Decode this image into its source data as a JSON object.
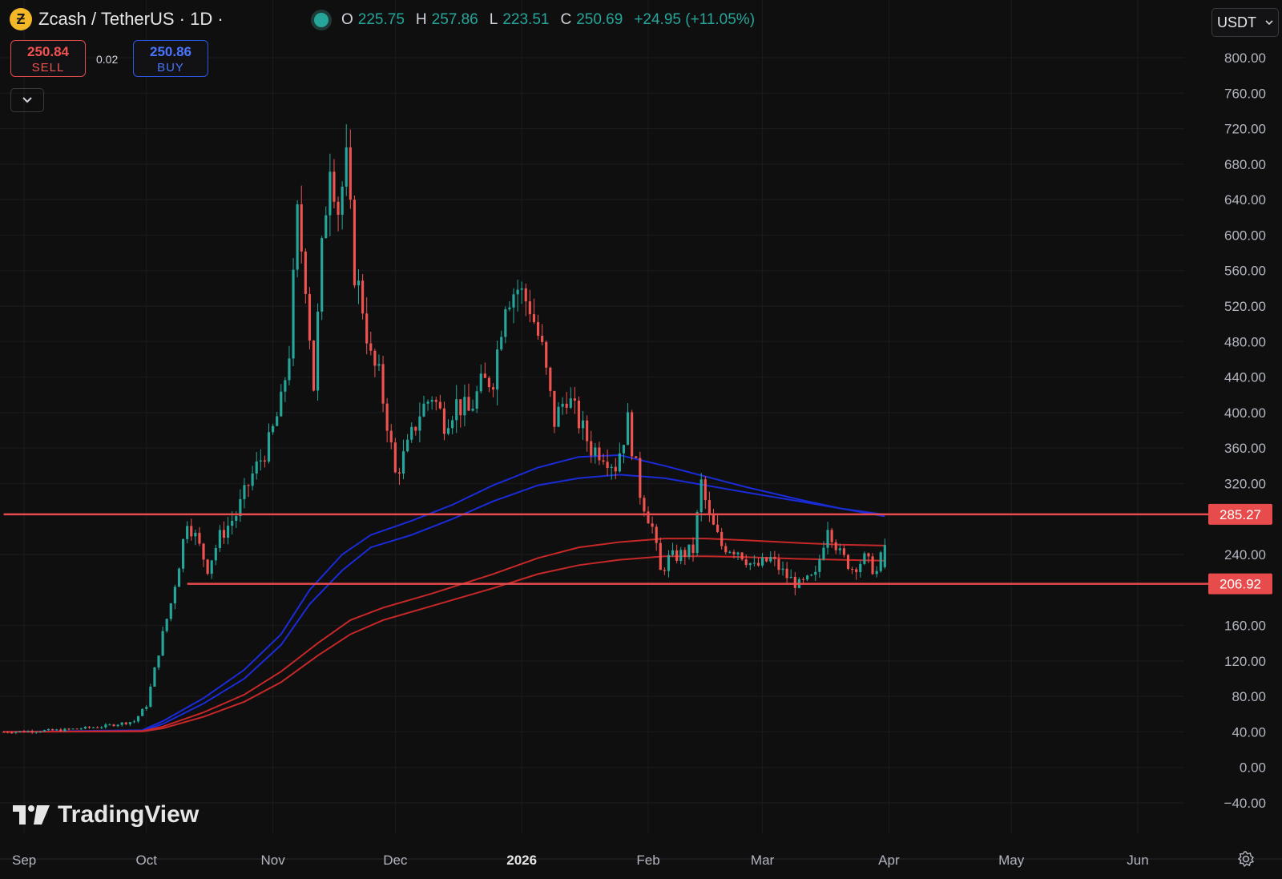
{
  "header": {
    "coin_glyph": "Ƶ",
    "symbol": "Zcash / TetherUS · 1D ·",
    "ohlc": {
      "o_label": "O",
      "o": "225.75",
      "h_label": "H",
      "h": "257.86",
      "l_label": "L",
      "l": "223.51",
      "c_label": "C",
      "c": "250.69",
      "change": "+24.95 (+11.05%)"
    }
  },
  "trade": {
    "sell_price": "250.84",
    "sell_label": "SELL",
    "spread": "0.02",
    "buy_price": "250.86",
    "buy_label": "BUY"
  },
  "currency": {
    "label": "USDT"
  },
  "brand": {
    "name": "TradingView"
  },
  "colors": {
    "up": "#26a69a",
    "down": "#ef5350",
    "ma_blue": "#1a2bd8",
    "ma_red": "#c62828",
    "hline": "#e84b4b",
    "grid": "#1c1c1f",
    "axis_text": "#b2b5be"
  },
  "chart_data": {
    "type": "candlestick",
    "y_ticks": [
      800,
      760,
      720,
      680,
      640,
      600,
      560,
      520,
      480,
      440,
      400,
      360,
      320,
      240,
      160,
      120,
      80,
      40,
      0,
      -40
    ],
    "y_tick_labels": [
      "800.00",
      "760.00",
      "720.00",
      "680.00",
      "640.00",
      "600.00",
      "560.00",
      "520.00",
      "480.00",
      "440.00",
      "400.00",
      "360.00",
      "320.00",
      "240.00",
      "160.00",
      "120.00",
      "80.00",
      "40.00",
      "0.00",
      "−40.00"
    ],
    "ylim": [
      -60,
      830
    ],
    "x_labels": [
      {
        "date": "2025-09-01",
        "label": "Sep"
      },
      {
        "date": "2025-10-01",
        "label": "Oct"
      },
      {
        "date": "2025-11-01",
        "label": "Nov"
      },
      {
        "date": "2025-12-01",
        "label": "Dec"
      },
      {
        "date": "2026-01-01",
        "label": "2026"
      },
      {
        "date": "2026-02-01",
        "label": "Feb"
      },
      {
        "date": "2026-03-01",
        "label": "Mar"
      },
      {
        "date": "2026-04-01",
        "label": "Apr"
      },
      {
        "date": "2026-05-01",
        "label": "May"
      },
      {
        "date": "2026-06-01",
        "label": "Jun"
      }
    ],
    "xlim": [
      "2025-08-27",
      "2026-06-12"
    ],
    "horizontal_lines": [
      {
        "value": 285.27,
        "label": "285.27",
        "from": "2025-08-27"
      },
      {
        "value": 206.92,
        "label": "206.92",
        "from": "2025-10-11"
      }
    ],
    "moving_averages": [
      {
        "color": "blue",
        "points": [
          [
            "2025-08-27",
            40
          ],
          [
            "2025-09-30",
            42
          ],
          [
            "2025-10-05",
            52
          ],
          [
            "2025-10-15",
            78
          ],
          [
            "2025-10-25",
            110
          ],
          [
            "2025-11-03",
            150
          ],
          [
            "2025-11-10",
            200
          ],
          [
            "2025-11-18",
            240
          ],
          [
            "2025-11-25",
            262
          ],
          [
            "2025-12-05",
            278
          ],
          [
            "2025-12-15",
            296
          ],
          [
            "2025-12-25",
            318
          ],
          [
            "2026-01-05",
            338
          ],
          [
            "2026-01-15",
            350
          ],
          [
            "2026-01-25",
            352
          ],
          [
            "2026-02-05",
            340
          ],
          [
            "2026-02-15",
            328
          ],
          [
            "2026-02-25",
            316
          ],
          [
            "2026-03-10",
            302
          ],
          [
            "2026-03-20",
            292
          ],
          [
            "2026-03-31",
            283
          ]
        ]
      },
      {
        "color": "blue",
        "points": [
          [
            "2025-08-27",
            40
          ],
          [
            "2025-09-30",
            41
          ],
          [
            "2025-10-05",
            49
          ],
          [
            "2025-10-15",
            72
          ],
          [
            "2025-10-25",
            100
          ],
          [
            "2025-11-03",
            138
          ],
          [
            "2025-11-10",
            184
          ],
          [
            "2025-11-18",
            222
          ],
          [
            "2025-11-25",
            248
          ],
          [
            "2025-12-05",
            262
          ],
          [
            "2025-12-15",
            280
          ],
          [
            "2025-12-25",
            300
          ],
          [
            "2026-01-05",
            318
          ],
          [
            "2026-01-15",
            326
          ],
          [
            "2026-01-25",
            330
          ],
          [
            "2026-02-05",
            326
          ],
          [
            "2026-02-15",
            318
          ],
          [
            "2026-02-25",
            310
          ],
          [
            "2026-03-10",
            300
          ],
          [
            "2026-03-20",
            292
          ],
          [
            "2026-03-31",
            285
          ]
        ]
      },
      {
        "color": "red",
        "points": [
          [
            "2025-08-27",
            40
          ],
          [
            "2025-09-30",
            41
          ],
          [
            "2025-10-05",
            46
          ],
          [
            "2025-10-15",
            62
          ],
          [
            "2025-10-25",
            82
          ],
          [
            "2025-11-03",
            108
          ],
          [
            "2025-11-12",
            140
          ],
          [
            "2025-11-20",
            166
          ],
          [
            "2025-11-28",
            180
          ],
          [
            "2025-12-10",
            196
          ],
          [
            "2025-12-25",
            218
          ],
          [
            "2026-01-05",
            236
          ],
          [
            "2026-01-15",
            248
          ],
          [
            "2026-01-25",
            254
          ],
          [
            "2026-02-05",
            258
          ],
          [
            "2026-02-15",
            258
          ],
          [
            "2026-02-25",
            256
          ],
          [
            "2026-03-10",
            253
          ],
          [
            "2026-03-20",
            251
          ],
          [
            "2026-03-31",
            250
          ]
        ]
      },
      {
        "color": "red",
        "points": [
          [
            "2025-08-27",
            40
          ],
          [
            "2025-09-30",
            40.5
          ],
          [
            "2025-10-05",
            44
          ],
          [
            "2025-10-15",
            57
          ],
          [
            "2025-10-25",
            74
          ],
          [
            "2025-11-03",
            96
          ],
          [
            "2025-11-12",
            126
          ],
          [
            "2025-11-20",
            150
          ],
          [
            "2025-11-28",
            166
          ],
          [
            "2025-12-10",
            182
          ],
          [
            "2025-12-25",
            202
          ],
          [
            "2026-01-05",
            218
          ],
          [
            "2026-01-15",
            228
          ],
          [
            "2026-01-25",
            234
          ],
          [
            "2026-02-05",
            238
          ],
          [
            "2026-02-15",
            238
          ],
          [
            "2026-02-25",
            237
          ],
          [
            "2026-03-10",
            235
          ],
          [
            "2026-03-20",
            234
          ],
          [
            "2026-03-31",
            233
          ]
        ]
      }
    ],
    "close_path": [
      [
        "2025-08-27",
        40
      ],
      [
        "2025-09-10",
        42
      ],
      [
        "2025-09-20",
        46
      ],
      [
        "2025-09-28",
        52
      ],
      [
        "2025-10-01",
        70
      ],
      [
        "2025-10-03",
        110
      ],
      [
        "2025-10-05",
        150
      ],
      [
        "2025-10-07",
        185
      ],
      [
        "2025-10-09",
        230
      ],
      [
        "2025-10-11",
        280
      ],
      [
        "2025-10-13",
        260
      ],
      [
        "2025-10-16",
        225
      ],
      [
        "2025-10-19",
        260
      ],
      [
        "2025-10-23",
        285
      ],
      [
        "2025-10-27",
        330
      ],
      [
        "2025-10-31",
        365
      ],
      [
        "2025-11-03",
        410
      ],
      [
        "2025-11-05",
        470
      ],
      [
        "2025-11-07",
        620
      ],
      [
        "2025-11-09",
        550
      ],
      [
        "2025-11-11",
        430
      ],
      [
        "2025-11-13",
        580
      ],
      [
        "2025-11-15",
        690
      ],
      [
        "2025-11-17",
        630
      ],
      [
        "2025-11-19",
        680
      ],
      [
        "2025-11-21",
        560
      ],
      [
        "2025-11-23",
        520
      ],
      [
        "2025-11-25",
        460
      ],
      [
        "2025-11-27",
        440
      ],
      [
        "2025-11-29",
        390
      ],
      [
        "2025-12-01",
        330
      ],
      [
        "2025-12-04",
        360
      ],
      [
        "2025-12-07",
        400
      ],
      [
        "2025-12-10",
        420
      ],
      [
        "2025-12-13",
        390
      ],
      [
        "2025-12-16",
        410
      ],
      [
        "2025-12-19",
        400
      ],
      [
        "2025-12-22",
        430
      ],
      [
        "2025-12-25",
        440
      ],
      [
        "2025-12-28",
        530
      ],
      [
        "2025-12-31",
        540
      ],
      [
        "2026-01-03",
        520
      ],
      [
        "2026-01-06",
        470
      ],
      [
        "2026-01-09",
        390
      ],
      [
        "2026-01-12",
        420
      ],
      [
        "2026-01-15",
        390
      ],
      [
        "2026-01-18",
        360
      ],
      [
        "2026-01-21",
        355
      ],
      [
        "2026-01-24",
        340
      ],
      [
        "2026-01-27",
        390
      ],
      [
        "2026-01-30",
        310
      ],
      [
        "2026-02-02",
        270
      ],
      [
        "2026-02-04",
        220
      ],
      [
        "2026-02-06",
        235
      ],
      [
        "2026-02-09",
        240
      ],
      [
        "2026-02-12",
        245
      ],
      [
        "2026-02-14",
        320
      ],
      [
        "2026-02-16",
        280
      ],
      [
        "2026-02-19",
        250
      ],
      [
        "2026-02-23",
        245
      ],
      [
        "2026-02-27",
        225
      ],
      [
        "2026-03-03",
        235
      ],
      [
        "2026-03-07",
        215
      ],
      [
        "2026-03-10",
        205
      ],
      [
        "2026-03-14",
        215
      ],
      [
        "2026-03-17",
        275
      ],
      [
        "2026-03-20",
        240
      ],
      [
        "2026-03-23",
        225
      ],
      [
        "2026-03-26",
        235
      ],
      [
        "2026-03-29",
        220
      ],
      [
        "2026-03-31",
        250.69
      ]
    ],
    "last": {
      "open": 225.75,
      "high": 257.86,
      "low": 223.51,
      "close": 250.69
    }
  }
}
